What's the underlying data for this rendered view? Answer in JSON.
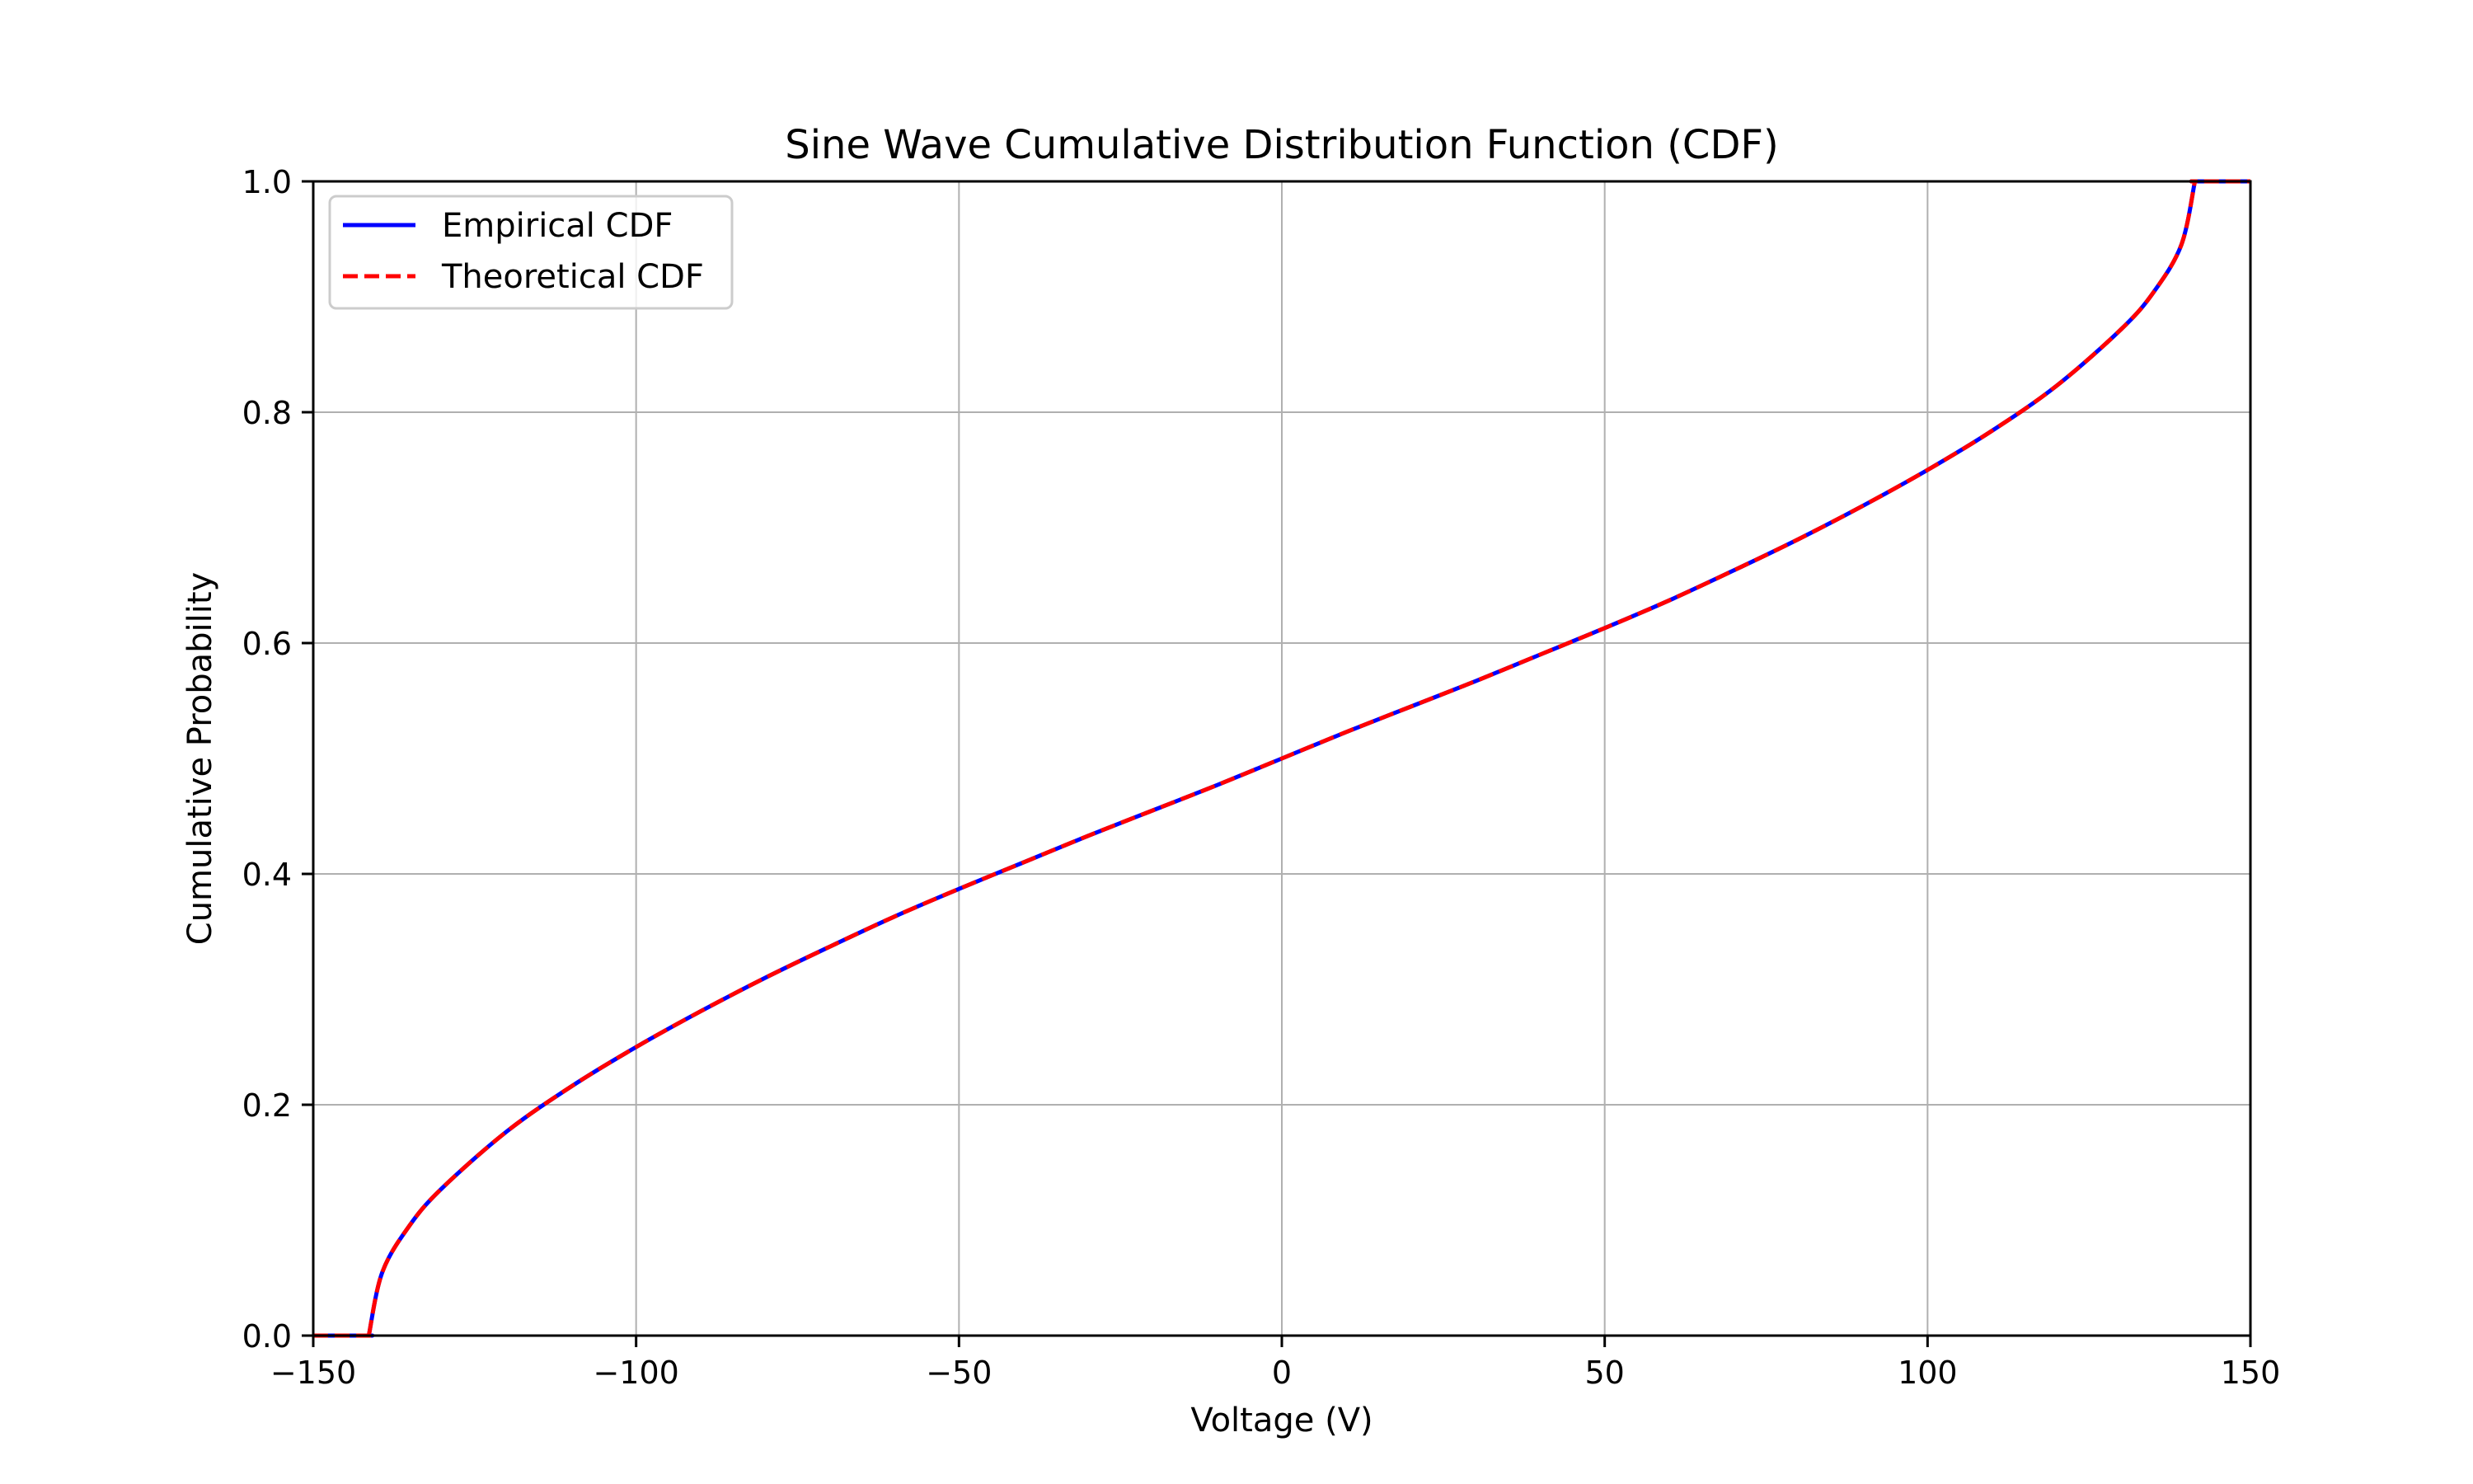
{
  "chart_data": {
    "type": "line",
    "title": "Sine Wave Cumulative Distribution Function (CDF)",
    "xlabel": "Voltage (V)",
    "ylabel": "Cumulative Probability",
    "xlim": [
      -150,
      150
    ],
    "ylim": [
      0.0,
      1.0
    ],
    "x_ticks": [
      -150,
      -100,
      -50,
      0,
      50,
      100,
      150
    ],
    "x_tick_labels": [
      "−150",
      "−100",
      "−50",
      "0",
      "50",
      "100",
      "150"
    ],
    "y_ticks": [
      0.0,
      0.2,
      0.4,
      0.6,
      0.8,
      1.0
    ],
    "y_tick_labels": [
      "0.0",
      "0.2",
      "0.4",
      "0.6",
      "0.8",
      "1.0"
    ],
    "grid": true,
    "legend_position": "top-left",
    "series": [
      {
        "name": "Empirical CDF",
        "color": "#0000ff",
        "style": "solid",
        "x": [
          -150,
          -141.4,
          -141.4,
          -139.3,
          -135,
          -130,
          -120,
          -110,
          -100,
          -90,
          -80,
          -70,
          -60,
          -50,
          -40,
          -30,
          -20,
          -10,
          0,
          10,
          20,
          30,
          40,
          50,
          60,
          70,
          80,
          90,
          100,
          110,
          120,
          130,
          135,
          139.3,
          141.4,
          141.4,
          150
        ],
        "y": [
          0.0,
          0.0,
          0.0,
          0.055,
          0.096,
          0.128,
          0.177,
          0.216,
          0.25,
          0.281,
          0.31,
          0.337,
          0.363,
          0.387,
          0.41,
          0.433,
          0.455,
          0.477,
          0.5,
          0.523,
          0.545,
          0.567,
          0.59,
          0.613,
          0.637,
          0.663,
          0.69,
          0.719,
          0.75,
          0.784,
          0.823,
          0.872,
          0.904,
          0.945,
          1.0,
          1.0,
          1.0
        ]
      },
      {
        "name": "Theoretical CDF",
        "color": "#ff0000",
        "style": "dashed",
        "x": [
          -150,
          -141.4,
          -141.4,
          -139.3,
          -135,
          -130,
          -120,
          -110,
          -100,
          -90,
          -80,
          -70,
          -60,
          -50,
          -40,
          -30,
          -20,
          -10,
          0,
          10,
          20,
          30,
          40,
          50,
          60,
          70,
          80,
          90,
          100,
          110,
          120,
          130,
          135,
          139.3,
          141.4,
          141.4,
          150
        ],
        "y": [
          0.0,
          0.0,
          0.0,
          0.055,
          0.096,
          0.128,
          0.177,
          0.216,
          0.25,
          0.281,
          0.31,
          0.337,
          0.363,
          0.387,
          0.41,
          0.433,
          0.455,
          0.477,
          0.5,
          0.523,
          0.545,
          0.567,
          0.59,
          0.613,
          0.637,
          0.663,
          0.69,
          0.719,
          0.75,
          0.784,
          0.823,
          0.872,
          0.904,
          0.945,
          1.0,
          1.0,
          1.0
        ]
      }
    ]
  },
  "colors": {
    "grid": "#b0b0b0",
    "axes": "#000000",
    "legend_border": "#cccccc"
  }
}
